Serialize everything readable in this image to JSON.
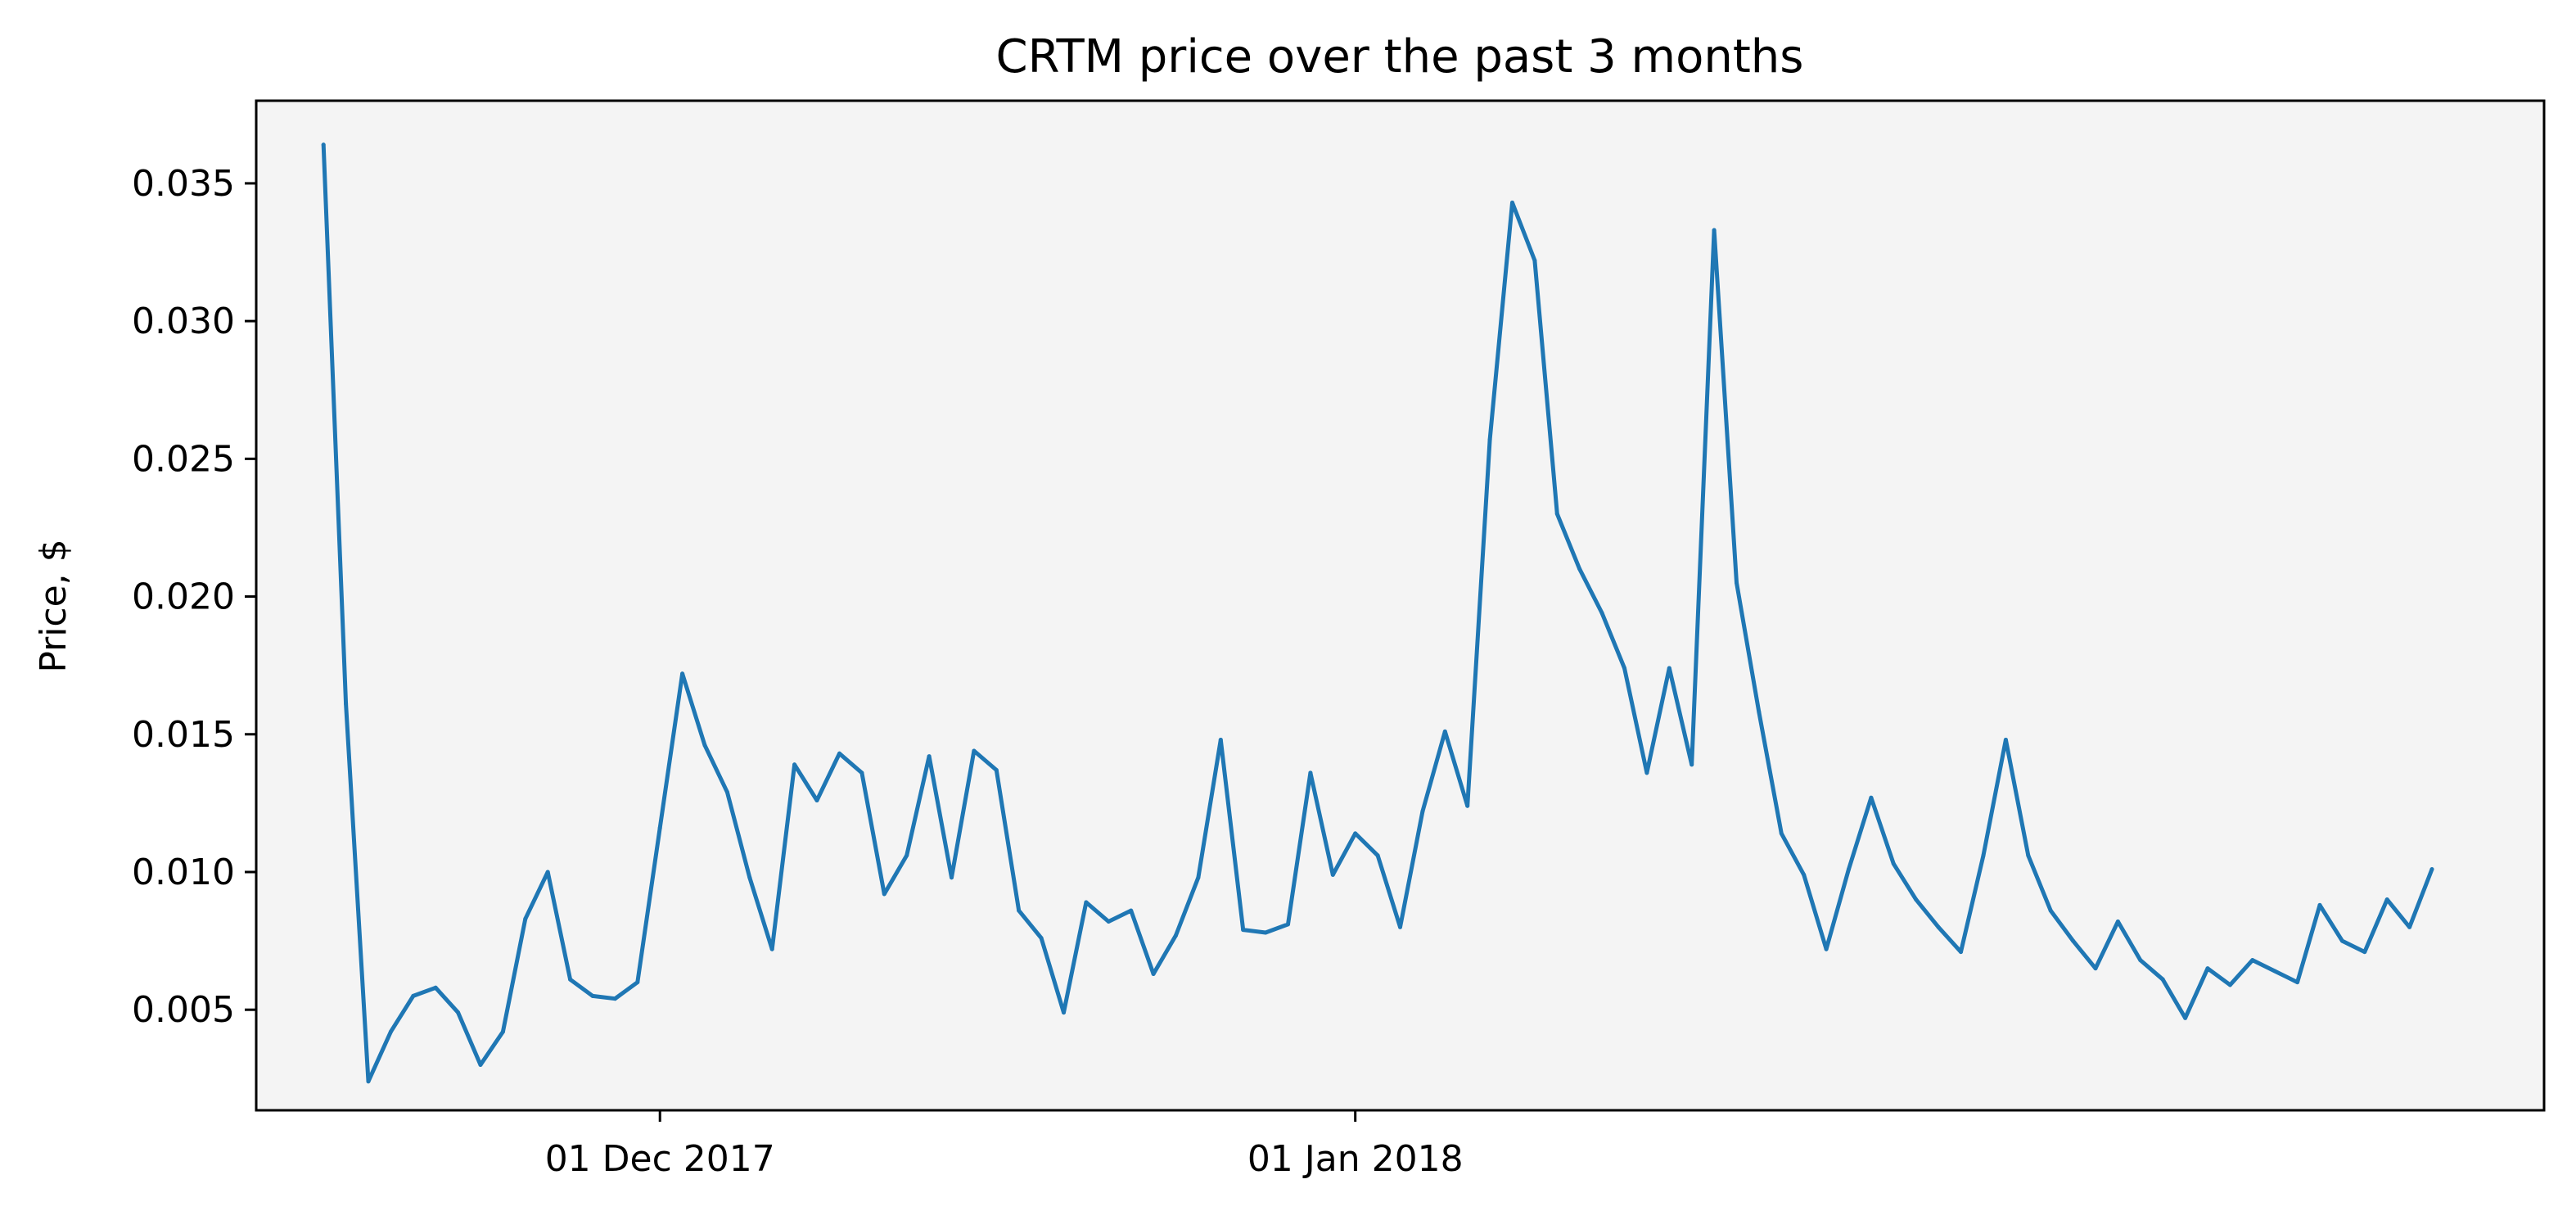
{
  "chart_data": {
    "type": "line",
    "title": "CRTM price over the past 3 months",
    "xlabel": "",
    "ylabel": "Price, $",
    "x_ticks": [
      {
        "date": "2017-12-01",
        "label": "01 Dec 2017"
      },
      {
        "date": "2018-01-01",
        "label": "01 Jan 2018"
      }
    ],
    "y_ticks": [
      {
        "value": 0.005,
        "label": "0.005"
      },
      {
        "value": 0.01,
        "label": "0.010"
      },
      {
        "value": 0.015,
        "label": "0.015"
      },
      {
        "value": 0.02,
        "label": "0.020"
      },
      {
        "value": 0.025,
        "label": "0.025"
      },
      {
        "value": 0.03,
        "label": "0.030"
      },
      {
        "value": 0.035,
        "label": "0.035"
      }
    ],
    "xlim": [
      "2017-11-13",
      "2018-02-23"
    ],
    "ylim": [
      0.00135,
      0.038
    ],
    "grid": false,
    "colors": {
      "line": "#1f77b4",
      "plot_background": "#f4f4f4"
    },
    "series": [
      {
        "x": [
          "2017-11-16",
          "2017-11-17",
          "2017-11-18",
          "2017-11-19",
          "2017-11-20",
          "2017-11-21",
          "2017-11-22",
          "2017-11-23",
          "2017-11-24",
          "2017-11-25",
          "2017-11-26",
          "2017-11-27",
          "2017-11-28",
          "2017-11-29",
          "2017-11-30",
          "2017-12-01",
          "2017-12-02",
          "2017-12-03",
          "2017-12-04",
          "2017-12-05",
          "2017-12-06",
          "2017-12-07",
          "2017-12-08",
          "2017-12-09",
          "2017-12-10",
          "2017-12-11",
          "2017-12-12",
          "2017-12-13",
          "2017-12-14",
          "2017-12-15",
          "2017-12-16",
          "2017-12-17",
          "2017-12-18",
          "2017-12-19",
          "2017-12-20",
          "2017-12-21",
          "2017-12-22",
          "2017-12-23",
          "2017-12-24",
          "2017-12-25",
          "2017-12-26",
          "2017-12-27",
          "2017-12-28",
          "2017-12-29",
          "2017-12-30",
          "2017-12-31",
          "2018-01-01",
          "2018-01-02",
          "2018-01-03",
          "2018-01-04",
          "2018-01-05",
          "2018-01-06",
          "2018-01-07",
          "2018-01-08",
          "2018-01-09",
          "2018-01-10",
          "2018-01-11",
          "2018-01-12",
          "2018-01-13",
          "2018-01-14",
          "2018-01-15",
          "2018-01-16",
          "2018-01-17",
          "2018-01-18",
          "2018-01-19",
          "2018-01-20",
          "2018-01-21",
          "2018-01-22",
          "2018-01-23",
          "2018-01-24",
          "2018-01-25",
          "2018-01-26",
          "2018-01-27",
          "2018-01-28",
          "2018-01-29",
          "2018-01-30",
          "2018-01-31",
          "2018-02-01",
          "2018-02-02",
          "2018-02-03",
          "2018-02-04",
          "2018-02-05",
          "2018-02-06",
          "2018-02-07",
          "2018-02-08",
          "2018-02-09",
          "2018-02-10",
          "2018-02-11",
          "2018-02-12",
          "2018-02-13",
          "2018-02-14",
          "2018-02-15",
          "2018-02-16",
          "2018-02-17",
          "2018-02-18"
        ],
        "values": [
          0.0364,
          0.0161,
          0.0024,
          0.0042,
          0.0055,
          0.0058,
          0.0049,
          0.003,
          0.0042,
          0.0083,
          0.01,
          0.0061,
          0.0055,
          0.0054,
          0.006,
          0.0116,
          0.0172,
          0.0146,
          0.0129,
          0.0098,
          0.0072,
          0.0139,
          0.0126,
          0.0143,
          0.0136,
          0.0092,
          0.0106,
          0.0142,
          0.0098,
          0.0144,
          0.0137,
          0.0086,
          0.0076,
          0.0049,
          0.0089,
          0.0082,
          0.0086,
          0.0063,
          0.0077,
          0.0098,
          0.0148,
          0.0079,
          0.0078,
          0.0081,
          0.0136,
          0.0099,
          0.0114,
          0.0106,
          0.008,
          0.0122,
          0.0151,
          0.0124,
          0.0257,
          0.0343,
          0.0322,
          0.023,
          0.021,
          0.0194,
          0.0174,
          0.0136,
          0.0174,
          0.0139,
          0.0333,
          0.0205,
          0.0158,
          0.0114,
          0.0099,
          0.0072,
          0.0101,
          0.0127,
          0.0103,
          0.009,
          0.008,
          0.0071,
          0.0106,
          0.0148,
          0.0106,
          0.0086,
          0.0075,
          0.0065,
          0.0082,
          0.0068,
          0.0061,
          0.0047,
          0.0065,
          0.0059,
          0.0068,
          0.0064,
          0.006,
          0.0088,
          0.0075,
          0.0071,
          0.009,
          0.008,
          0.0101
        ]
      }
    ]
  }
}
